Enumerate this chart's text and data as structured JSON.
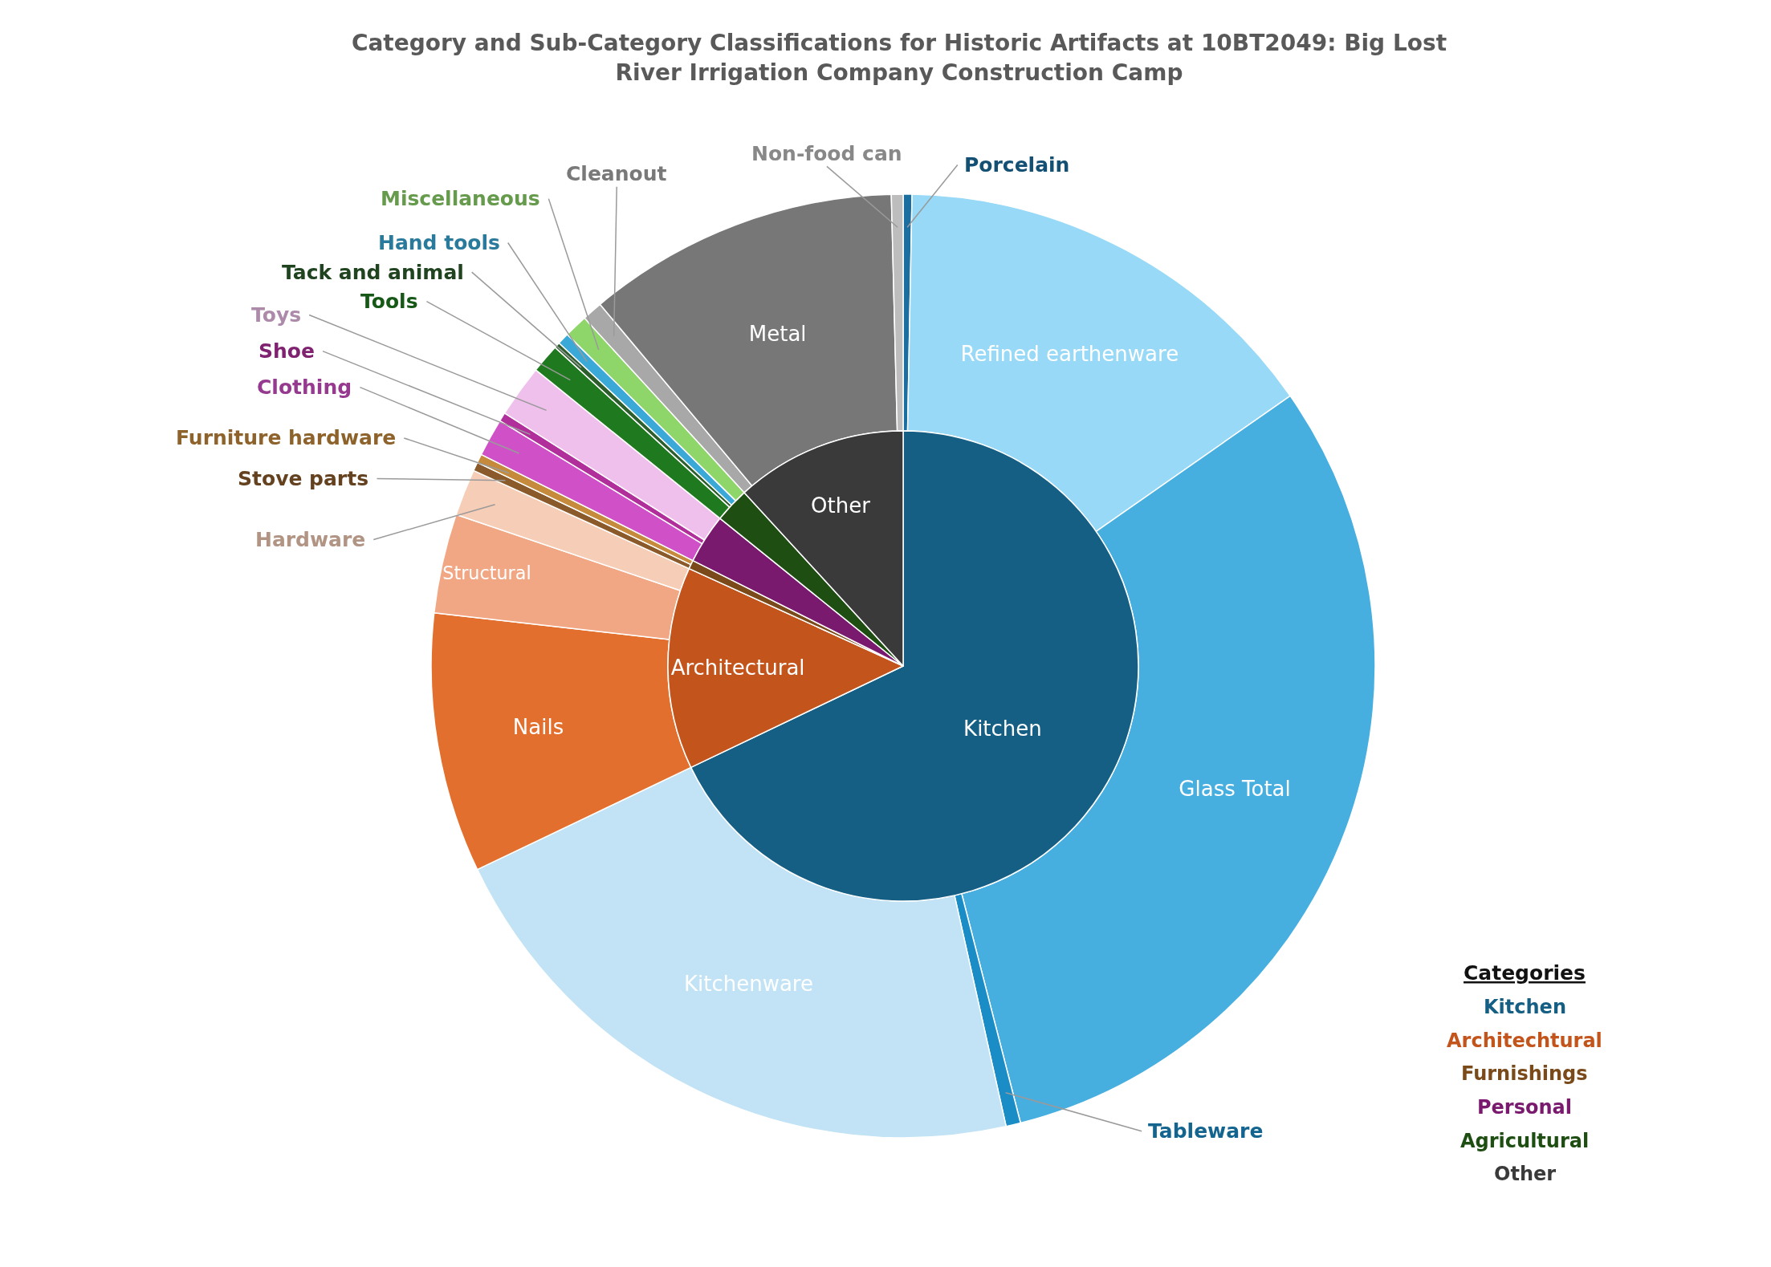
{
  "chart_data": [
    {
      "type": "donut",
      "title": "Category and Sub-Category Classifications for Historic Artifacts at 10BT2049: Big Lost River Irrigation Company Construction Camp",
      "categories": [
        "Porcelain",
        "Refined earthenware",
        "Glass Total",
        "Tableware",
        "Kitchenware",
        "Nails",
        "Structural",
        "Hardware",
        "Stove parts",
        "Furniture hardware",
        "Clothing",
        "Shoe",
        "Toys",
        "Tools",
        "Tack and animal",
        "Hand tools",
        "Miscellaneous",
        "Cleanout",
        "Metal",
        "Non-food can"
      ],
      "values": [
        0.3,
        15,
        30.7,
        0.5,
        21.4,
        8.9,
        3.4,
        1.6,
        0.3,
        0.3,
        1.3,
        0.3,
        1.8,
        1,
        0.2,
        0.4,
        0.8,
        0.7,
        10.7,
        0.4
      ],
      "colors": [
        "#1a6fa0",
        "#97d9f6",
        "#47aee0",
        "#1a8cc6",
        "#c2e3f5",
        "#e36f2e",
        "#f2a784",
        "#f6cdb6",
        "#8b5a2b",
        "#c58a3c",
        "#d050c8",
        "#b02f9a",
        "#f0c0ec",
        "#1f7a1f",
        "#2d5f2d",
        "#3aa9d8",
        "#8ed66a",
        "#a8a8a8",
        "#777777",
        "#bdbdbd"
      ]
    },
    {
      "type": "pie",
      "categories": [
        "Kitchen",
        "Architectural",
        null,
        null,
        null,
        "Other"
      ],
      "values": [
        67.9,
        13.9,
        0.6,
        3.4,
        2.4,
        11.8
      ],
      "colors": [
        "#155e84",
        "#c2541c",
        "#7a4a1a",
        "#7a1a6e",
        "#1e4e12",
        "#3a3a3a"
      ],
      "legend_title": "Categories",
      "annotations": [
        "Kitchen",
        "Architechtural",
        "Furnishings",
        "Personal",
        "Agricultural",
        "Other"
      ]
    }
  ]
}
